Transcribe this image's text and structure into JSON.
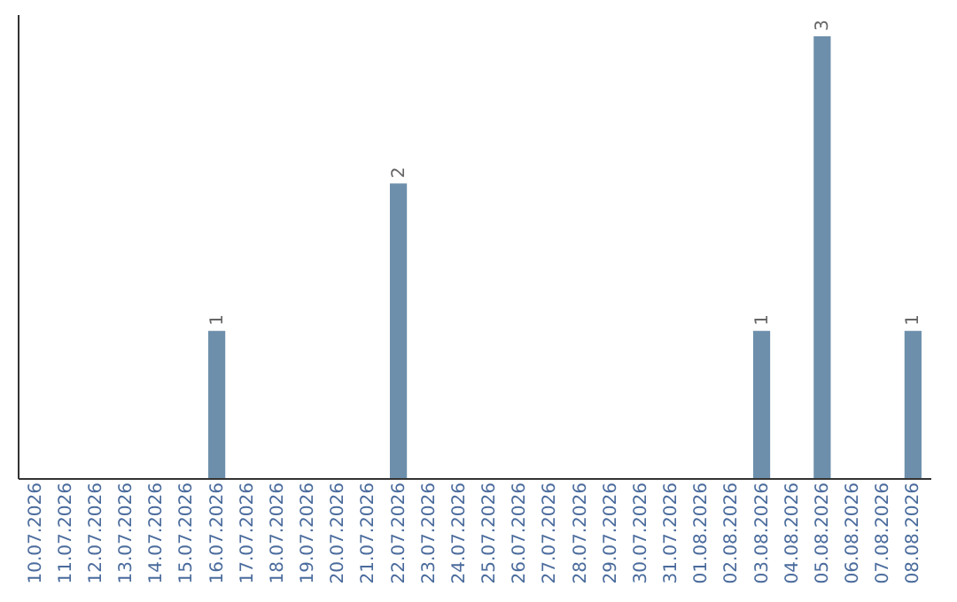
{
  "chart_data": {
    "type": "bar",
    "categories": [
      "10.07.2026",
      "11.07.2026",
      "12.07.2026",
      "13.07.2026",
      "14.07.2026",
      "15.07.2026",
      "16.07.2026",
      "17.07.2026",
      "18.07.2026",
      "19.07.2026",
      "20.07.2026",
      "21.07.2026",
      "22.07.2026",
      "23.07.2026",
      "24.07.2026",
      "25.07.2026",
      "26.07.2026",
      "27.07.2026",
      "28.07.2026",
      "29.07.2026",
      "30.07.2026",
      "31.07.2026",
      "01.08.2026",
      "02.08.2026",
      "03.08.2026",
      "04.08.2026",
      "05.08.2026",
      "06.08.2026",
      "07.08.2026",
      "08.08.2026"
    ],
    "values": [
      0,
      0,
      0,
      0,
      0,
      0,
      1,
      0,
      0,
      0,
      0,
      0,
      2,
      0,
      0,
      0,
      0,
      0,
      0,
      0,
      0,
      0,
      0,
      0,
      1,
      0,
      3,
      0,
      0,
      1
    ],
    "value_labels": [
      null,
      null,
      null,
      null,
      null,
      null,
      "1",
      null,
      null,
      null,
      null,
      null,
      "2",
      null,
      null,
      null,
      null,
      null,
      null,
      null,
      null,
      null,
      null,
      null,
      "1",
      null,
      "3",
      null,
      null,
      "1"
    ],
    "color": "#6d8fab",
    "tick_labels": "x"
  }
}
